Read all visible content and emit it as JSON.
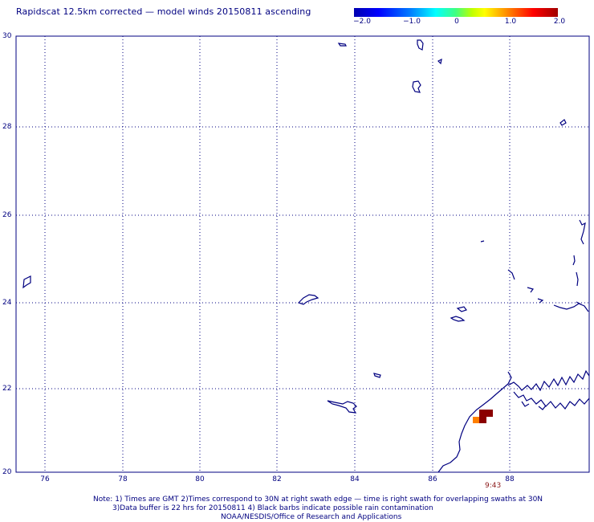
{
  "title": "Rapidscat 12.5km corrected — model winds 20150811 ascending",
  "colorbar": {
    "ticks": [
      "−2.0",
      "−1.0",
      "0",
      "1.0",
      "2.0"
    ],
    "tick_values": [
      -2.0,
      -1.0,
      0,
      1.0,
      2.0
    ],
    "colors": [
      "#0000b0",
      "#0000ff",
      "#00ffff",
      "#ffff00",
      "#ff0000",
      "#a00000"
    ]
  },
  "axes": {
    "x_ticks": [
      "76",
      "78",
      "80",
      "82",
      "84",
      "86",
      "88"
    ],
    "x_values": [
      76,
      78,
      80,
      82,
      84,
      86,
      88
    ],
    "y_ticks": [
      "30",
      "28",
      "26",
      "24",
      "22",
      "20"
    ],
    "y_values": [
      30,
      28,
      26,
      24,
      22,
      20
    ],
    "grid": "dotted",
    "x_range": [
      75.5,
      90
    ],
    "y_range": [
      20,
      30
    ]
  },
  "time_label": "9:43",
  "notes": [
    "Note: 1) Times are GMT 2)Times correspond to 30N at right swath edge — time is right swath for overlapping swaths at 30N",
    "3)Data buffer is 22 hrs for 20150811 4) Black barbs indicate possible rain contamination",
    "NOAA/NESDIS/Office of Research and Applications"
  ],
  "colors": {
    "coastline": "#000080",
    "text": "#000080",
    "data_dark_red": "#8b0000",
    "data_orange": "#ff7f00",
    "time_text": "#8b1a1a"
  }
}
